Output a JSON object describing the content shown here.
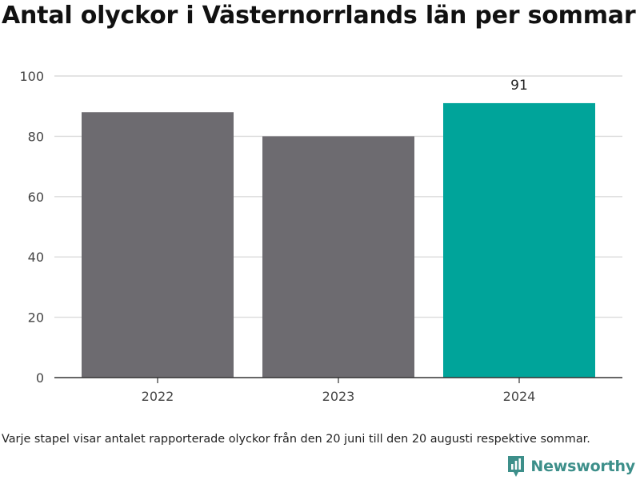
{
  "header": {
    "title": "Antal olyckor i Västernorrlands län per sommar"
  },
  "footer": {
    "caption": "Varje stapel visar antalet rapporterade olyckor från den 20 juni till den 20 augusti respektive sommar.",
    "brand_name": "Newsworthy",
    "brand_icon": "bar-chart-logo-icon"
  },
  "colors": {
    "bar_default": "#6d6b70",
    "bar_highlight": "#00a49a",
    "grid": "#dcdcdc",
    "axis": "#333333",
    "brand": "#3d8f8a"
  },
  "chart_data": {
    "type": "bar",
    "categories": [
      "2022",
      "2023",
      "2024"
    ],
    "values": [
      88,
      80,
      91
    ],
    "highlight": [
      false,
      false,
      true
    ],
    "data_labels": [
      "",
      "",
      "91"
    ],
    "ylim": [
      0,
      100
    ],
    "yticks": [
      0,
      20,
      40,
      60,
      80,
      100
    ],
    "grid": true,
    "xlabel": "",
    "ylabel": ""
  }
}
